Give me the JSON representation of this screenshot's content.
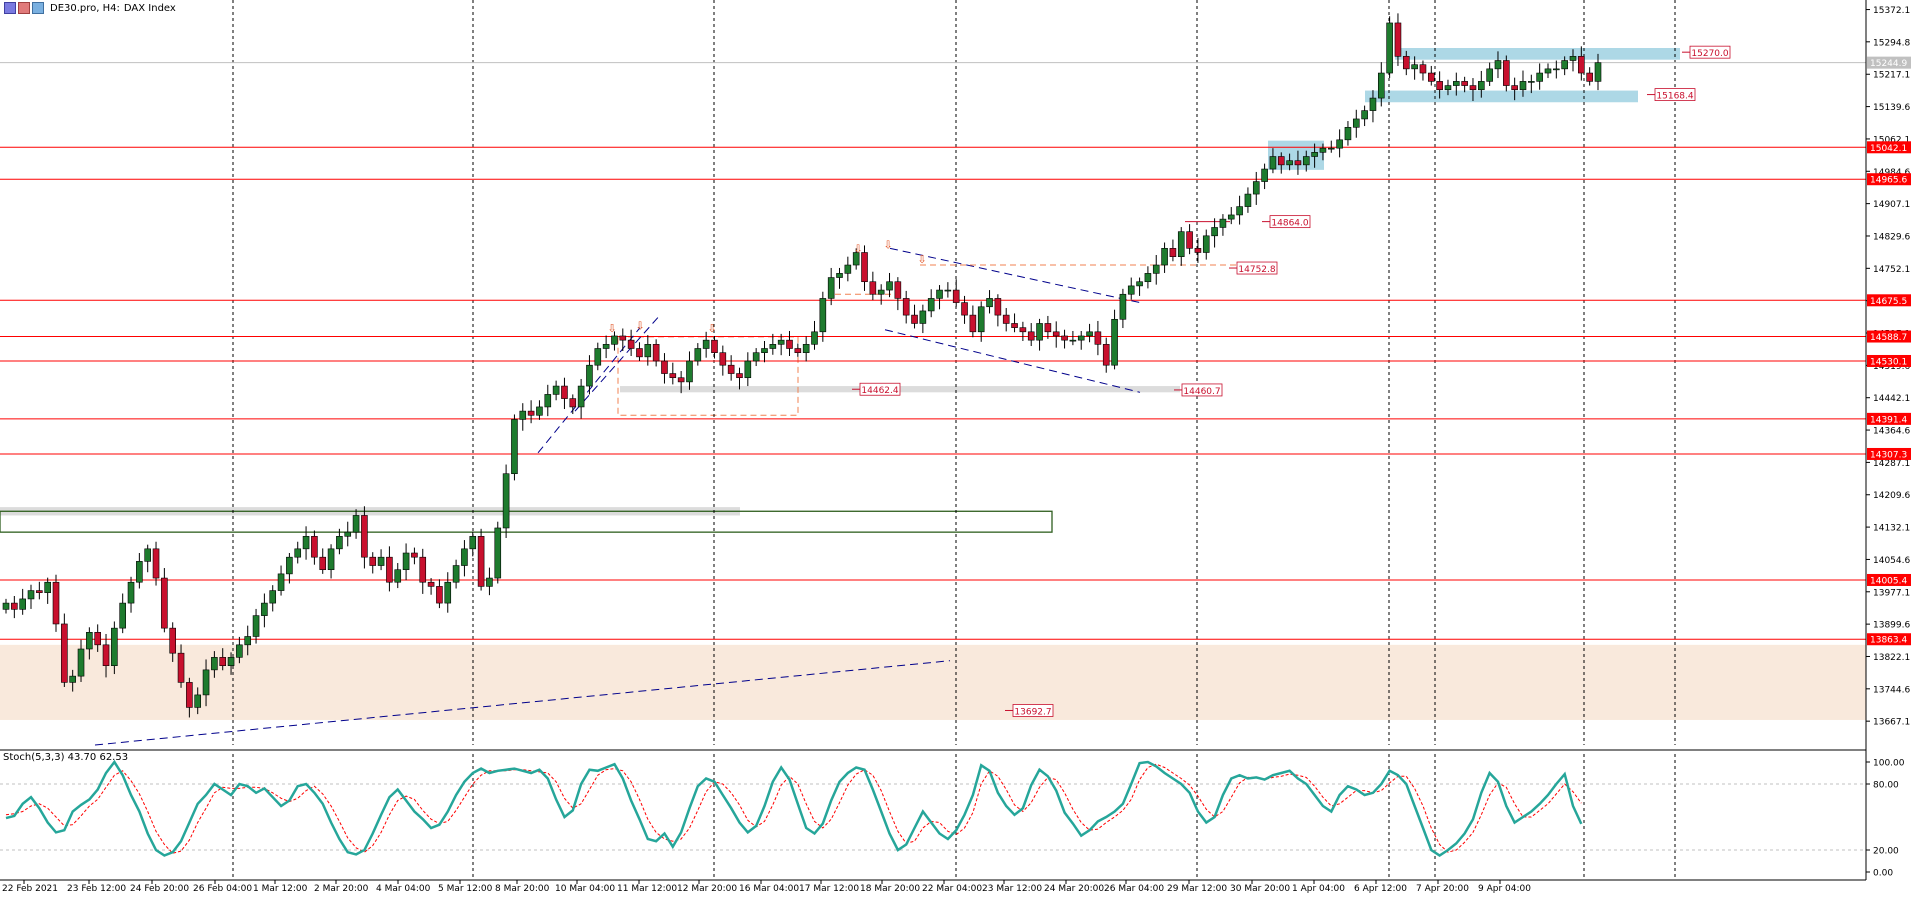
{
  "header": {
    "symbol": "DE30.pro, H4:",
    "description": "DAX Index"
  },
  "oscillator": {
    "label": "Stoch(5,3,3) 43.70 62.53",
    "levels": [
      "100.00",
      "80.00",
      "20.00",
      "0.00"
    ]
  },
  "colors": {
    "bull": "#1e7b2e",
    "bear": "#c8102e",
    "level_line": "#ff0000",
    "stoch_main": "#26a69a",
    "stoch_signal": "#ff0000",
    "trendline": "#00008b",
    "zone_blue": "#add8e6",
    "zone_grey": "#dcdcdc",
    "zone_beige": "#f9e9dc",
    "rect_green": "#2e5e1e",
    "current_price": "#c0c0c0"
  },
  "chart_data": {
    "type": "candlestick",
    "title": "",
    "xlabel": "",
    "ylabel": "",
    "ylim": [
      13610,
      15395
    ],
    "y_ticks": [
      "15372.1",
      "15294.8",
      "15217.1",
      "15139.6",
      "15062.1",
      "14984.6",
      "14907.1",
      "14829.6",
      "14752.1",
      "14674.6",
      "14597.1",
      "14519.6",
      "14442.1",
      "14364.6",
      "14287.1",
      "14209.6",
      "14132.1",
      "14054.6",
      "13977.1",
      "13899.6",
      "13822.1",
      "13744.6",
      "13667.1"
    ],
    "x_ticks": [
      "22 Feb 2021",
      "23 Feb 12:00",
      "24 Feb 20:00",
      "26 Feb 04:00",
      "1 Mar 12:00",
      "2 Mar 20:00",
      "4 Mar 04:00",
      "5 Mar 12:00",
      "8 Mar 20:00",
      "10 Mar 04:00",
      "11 Mar 12:00",
      "12 Mar 20:00",
      "16 Mar 04:00",
      "17 Mar 12:00",
      "18 Mar 20:00",
      "22 Mar 04:00",
      "23 Mar 12:00",
      "24 Mar 20:00",
      "26 Mar 04:00",
      "29 Mar 12:00",
      "30 Mar 20:00",
      "1 Apr 04:00",
      "6 Apr 12:00",
      "7 Apr 20:00",
      "9 Apr 04:00"
    ],
    "current_price": "15244.9",
    "closes": [
      13950,
      13935,
      13960,
      13980,
      13975,
      14000,
      13900,
      13760,
      13775,
      13840,
      13880,
      13850,
      13800,
      13890,
      13950,
      14000,
      14050,
      14080,
      14010,
      13890,
      13830,
      13760,
      13700,
      13730,
      13790,
      13820,
      13800,
      13820,
      13850,
      13870,
      13920,
      13950,
      13980,
      14020,
      14060,
      14080,
      14110,
      14060,
      14030,
      14080,
      14110,
      14120,
      14160,
      14060,
      14040,
      14060,
      14000,
      14030,
      14070,
      14060,
      14000,
      13990,
      13950,
      14000,
      14040,
      14080,
      14110,
      13990,
      14010,
      14130,
      14260,
      14390,
      14410,
      14400,
      14420,
      14450,
      14470,
      14440,
      14420,
      14470,
      14520,
      14560,
      14570,
      14590,
      14580,
      14560,
      14540,
      14570,
      14530,
      14500,
      14490,
      14480,
      14530,
      14560,
      14580,
      14550,
      14520,
      14500,
      14490,
      14530,
      14550,
      14560,
      14570,
      14580,
      14560,
      14550,
      14570,
      14600,
      14680,
      14730,
      14740,
      14760,
      14790,
      14720,
      14690,
      14700,
      14720,
      14680,
      14640,
      14620,
      14650,
      14680,
      14700,
      14700,
      14670,
      14640,
      14600,
      14660,
      14680,
      14640,
      14620,
      14610,
      14600,
      14580,
      14620,
      14600,
      14590,
      14580,
      14580,
      14590,
      14600,
      14570,
      14520,
      14630,
      14690,
      14710,
      14720,
      14740,
      14760,
      14800,
      14780,
      14840,
      14800,
      14790,
      14830,
      14850,
      14870,
      14880,
      14900,
      14930,
      14960,
      14990,
      15020,
      15000,
      15010,
      15000,
      15020,
      15030,
      15040,
      15040,
      15060,
      15090,
      15110,
      15130,
      15160,
      15220,
      15340,
      15260,
      15230,
      15240,
      15220,
      15200,
      15180,
      15190,
      15200,
      15190,
      15180,
      15200,
      15230,
      15250,
      15190,
      15180,
      15200,
      15200,
      15220,
      15230,
      15230,
      15250,
      15260,
      15220,
      15200,
      15244.9
    ],
    "levels": [
      {
        "price": 15042.1,
        "label": "15042.1"
      },
      {
        "price": 14965.6,
        "label": "14965.6"
      },
      {
        "price": 14675.5,
        "label": "14675.5"
      },
      {
        "price": 14588.7,
        "label": "14588.7"
      },
      {
        "price": 14530.1,
        "label": "14530.1"
      },
      {
        "price": 14391.4,
        "label": "14391.4"
      },
      {
        "price": 14307.3,
        "label": "14307.3"
      },
      {
        "price": 14005.4,
        "label": "14005.4"
      },
      {
        "price": 13863.4,
        "label": "13863.4"
      }
    ],
    "annotations": [
      {
        "text": "15270.0",
        "price": 15270.0
      },
      {
        "text": "15168.4",
        "price": 15168.4
      },
      {
        "text": "14864.0",
        "price": 14864.0
      },
      {
        "text": "14752.8",
        "price": 14752.8
      },
      {
        "text": "14462.4",
        "price": 14462.4
      },
      {
        "text": "14460.7",
        "price": 14460.7
      },
      {
        "text": "13692.7",
        "price": 13692.7
      }
    ],
    "stoch_main": [
      49,
      51,
      62,
      68,
      58,
      45,
      36,
      38,
      55,
      61,
      66,
      75,
      90,
      100,
      88,
      70,
      55,
      35,
      20,
      15,
      18,
      28,
      45,
      62,
      70,
      80,
      75,
      70,
      80,
      78,
      72,
      76,
      68,
      60,
      65,
      78,
      80,
      72,
      62,
      45,
      30,
      18,
      16,
      20,
      35,
      52,
      68,
      75,
      65,
      55,
      48,
      40,
      43,
      55,
      70,
      82,
      90,
      94,
      90,
      92,
      93,
      94,
      92,
      90,
      93,
      85,
      66,
      50,
      56,
      80,
      93,
      92,
      95,
      98,
      85,
      65,
      48,
      30,
      28,
      35,
      23,
      36,
      58,
      78,
      85,
      82,
      70,
      58,
      45,
      36,
      42,
      60,
      82,
      95,
      84,
      62,
      40,
      35,
      44,
      65,
      82,
      90,
      95,
      93,
      75,
      55,
      35,
      20,
      25,
      40,
      55,
      45,
      35,
      30,
      38,
      52,
      70,
      97,
      92,
      72,
      60,
      52,
      58,
      79,
      93,
      87,
      74,
      54,
      44,
      33,
      38,
      46,
      50,
      55,
      62,
      80,
      99,
      100,
      96,
      90,
      85,
      80,
      72,
      55,
      45,
      50,
      70,
      85,
      88,
      85,
      86,
      84,
      88,
      90,
      92,
      85,
      80,
      70,
      60,
      55,
      70,
      78,
      75,
      70,
      72,
      80,
      92,
      88,
      80,
      60,
      40,
      20,
      15,
      20,
      26,
      35,
      48,
      72,
      90,
      82,
      60,
      45,
      50,
      55,
      62,
      70,
      80,
      89,
      60,
      43.7
    ],
    "stoch_signal": [
      52,
      53,
      55,
      60,
      62,
      58,
      50,
      42,
      43,
      51,
      60,
      66,
      77,
      88,
      92,
      83,
      71,
      55,
      37,
      25,
      17,
      19,
      29,
      45,
      58,
      72,
      77,
      76,
      76,
      77,
      77,
      76,
      72,
      67,
      64,
      67,
      74,
      78,
      71,
      60,
      46,
      31,
      22,
      18,
      24,
      36,
      52,
      65,
      69,
      66,
      56,
      48,
      44,
      46,
      56,
      68,
      80,
      88,
      92,
      92,
      92,
      93,
      93,
      92,
      91,
      90,
      82,
      67,
      58,
      62,
      75,
      88,
      93,
      94,
      92,
      82,
      66,
      48,
      36,
      30,
      28,
      30,
      40,
      56,
      73,
      82,
      80,
      72,
      61,
      47,
      41,
      46,
      61,
      79,
      87,
      80,
      62,
      46,
      40,
      48,
      63,
      79,
      89,
      93,
      88,
      74,
      55,
      37,
      26,
      28,
      40,
      46,
      45,
      37,
      34,
      40,
      54,
      80,
      92,
      87,
      75,
      61,
      55,
      63,
      77,
      86,
      84,
      72,
      57,
      45,
      38,
      39,
      45,
      50,
      56,
      66,
      84,
      95,
      98,
      95,
      90,
      85,
      79,
      69,
      57,
      50,
      55,
      68,
      81,
      86,
      86,
      84,
      86,
      87,
      89,
      88,
      86,
      78,
      68,
      60,
      62,
      68,
      74,
      74,
      72,
      74,
      81,
      87,
      87,
      76,
      60,
      40,
      25,
      18,
      20,
      27,
      36,
      52,
      70,
      81,
      77,
      62,
      50,
      50,
      56,
      62,
      71,
      80,
      73,
      62.53
    ]
  }
}
